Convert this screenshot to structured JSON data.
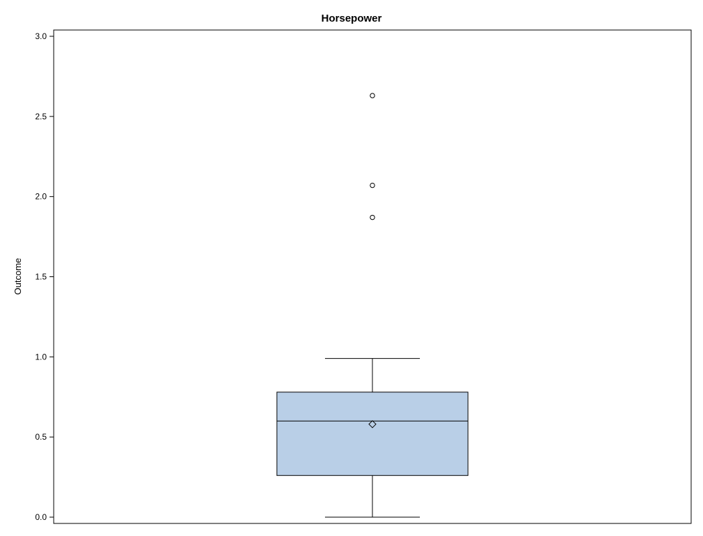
{
  "chart_data": {
    "type": "boxplot",
    "title": "Horsepower",
    "xlabel": "",
    "ylabel": "Outcome",
    "ylim": [
      0.0,
      3.0
    ],
    "yticks": [
      {
        "value": 0.0,
        "label": "0.0"
      },
      {
        "value": 0.5,
        "label": "0.5"
      },
      {
        "value": 1.0,
        "label": "1.0"
      },
      {
        "value": 1.5,
        "label": "1.5"
      },
      {
        "value": 2.0,
        "label": "2.0"
      },
      {
        "value": 2.5,
        "label": "2.5"
      },
      {
        "value": 3.0,
        "label": "3.0"
      }
    ],
    "grid": false,
    "box": {
      "whisker_low": 0.0,
      "q1": 0.26,
      "median": 0.6,
      "mean": 0.58,
      "q3": 0.78,
      "whisker_high": 0.99,
      "outliers": [
        1.87,
        2.07,
        2.63
      ]
    },
    "colors": {
      "box_fill": "#b9cfe7",
      "line": "#000000",
      "background": "#ffffff"
    }
  }
}
